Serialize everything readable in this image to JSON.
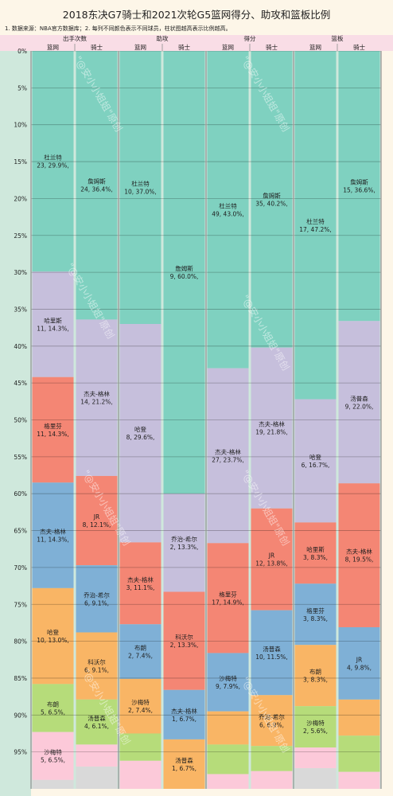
{
  "title": "2018东决G7骑士和2021次轮G5篮网得分、助攻和篮板比例",
  "note": "1. 数据来源：NBA官方数据库；2. 每列不同颜色表示不同球员，柱状图越高表示比例越高。",
  "watermark": "\"@安小小姐姐\"原创",
  "colors": {
    "background": "#fdf6e8",
    "header": "#f9dde6",
    "plot_bg": "#cfe8dc",
    "separator": "#8f8f8f",
    "players": {
      "杜兰特": "#7fd1c0",
      "詹姆斯": "#7fd1c0",
      "哈里斯": "#c6bfdc",
      "杰夫-格林": "#c6bfdc",
      "哈登": "#c6bfdc",
      "汤普森": "#c6bfdc",
      "格里芬": "#f48674",
      "JR": "#f48674",
      "科沃尔": "#f48674",
      "乔治-希尔": "#c6bfdc",
      "布朗": "#7fb0d6",
      "沙梅特": "#f9b565",
      "其他1": "#b6dc7a",
      "其他2": "#fcc9d9",
      "其他3": "#d9d9d9"
    }
  },
  "chart_data": {
    "type": "bar",
    "stacked": true,
    "ylabel_ticks": [
      "0%",
      "5%",
      "10%",
      "15%",
      "20%",
      "25%",
      "30%",
      "35%",
      "40%",
      "45%",
      "50%",
      "55%",
      "60%",
      "65%",
      "70%",
      "75%",
      "80%",
      "85%",
      "90%",
      "95%"
    ],
    "ylim": [
      0,
      100
    ],
    "y_axis_direction": "down",
    "groups": [
      {
        "name": "出手次数",
        "columns": [
          "篮网",
          "骑士"
        ]
      },
      {
        "name": "助攻",
        "columns": [
          "篮网",
          "骑士"
        ]
      },
      {
        "name": "得分",
        "columns": [
          "篮网",
          "骑士"
        ]
      },
      {
        "name": "篮板",
        "columns": [
          "篮网",
          "骑士"
        ]
      }
    ],
    "columns": [
      {
        "group": "出手次数",
        "team": "篮网",
        "segments": [
          {
            "player": "杜兰特",
            "label": "杜兰特\n23, 29.9%,",
            "value": 29.9,
            "color": "#7fd1c0"
          },
          {
            "player": "哈里斯",
            "label": "哈里斯\n11, 14.3%,",
            "value": 14.3,
            "color": "#c6bfdc"
          },
          {
            "player": "格里芬",
            "label": "格里芬\n11, 14.3%,",
            "value": 14.3,
            "color": "#f48674"
          },
          {
            "player": "杰夫-格林",
            "label": "杰夫-格林\n11, 14.3%,",
            "value": 14.3,
            "color": "#7fb0d6"
          },
          {
            "player": "哈登",
            "label": "哈登\n10, 13.0%,",
            "value": 13.0,
            "color": "#f9b565"
          },
          {
            "player": "布朗",
            "label": "布朗\n5, 6.5%,",
            "value": 6.5,
            "color": "#b6dc7a"
          },
          {
            "player": "沙梅特",
            "label": "沙梅特\n5, 6.5%,",
            "value": 6.5,
            "color": "#fcc9d9"
          },
          {
            "player": "",
            "label": "",
            "value": 1.2,
            "color": "#d9d9d9"
          }
        ]
      },
      {
        "group": "出手次数",
        "team": "骑士",
        "segments": [
          {
            "player": "詹姆斯",
            "label": "詹姆斯\n24, 36.4%,",
            "value": 36.4,
            "color": "#7fd1c0"
          },
          {
            "player": "杰夫-格林",
            "label": "杰夫-格林\n14, 21.2%,",
            "value": 21.2,
            "color": "#c6bfdc"
          },
          {
            "player": "JR",
            "label": "JR\n8, 12.1%,",
            "value": 12.1,
            "color": "#f48674"
          },
          {
            "player": "乔治-希尔",
            "label": "乔治-希尔\n6, 9.1%,",
            "value": 9.1,
            "color": "#7fb0d6"
          },
          {
            "player": "科沃尔",
            "label": "科沃尔\n6, 9.1%,",
            "value": 9.1,
            "color": "#f9b565"
          },
          {
            "player": "汤普森",
            "label": "汤普森\n4, 6.1%,",
            "value": 6.1,
            "color": "#b6dc7a"
          },
          {
            "player": "",
            "label": "",
            "value": 3.0,
            "color": "#fcc9d9"
          },
          {
            "player": "",
            "label": "",
            "value": 3.0,
            "color": "#d9d9d9"
          }
        ]
      },
      {
        "group": "助攻",
        "team": "篮网",
        "segments": [
          {
            "player": "杜兰特",
            "label": "杜兰特\n10, 37.0%,",
            "value": 37.0,
            "color": "#7fd1c0"
          },
          {
            "player": "哈登",
            "label": "哈登\n8, 29.6%,",
            "value": 29.6,
            "color": "#c6bfdc"
          },
          {
            "player": "杰夫-格林",
            "label": "杰夫-格林\n3, 11.1%,",
            "value": 11.1,
            "color": "#f48674"
          },
          {
            "player": "布朗",
            "label": "布朗\n2, 7.4%,",
            "value": 7.4,
            "color": "#7fb0d6"
          },
          {
            "player": "沙梅特",
            "label": "沙梅特\n2, 7.4%,",
            "value": 7.4,
            "color": "#f9b565"
          },
          {
            "player": "",
            "label": "",
            "value": 3.7,
            "color": "#b6dc7a"
          },
          {
            "player": "",
            "label": "",
            "value": 3.8,
            "color": "#fcc9d9"
          }
        ]
      },
      {
        "group": "助攻",
        "team": "骑士",
        "segments": [
          {
            "player": "詹姆斯",
            "label": "詹姆斯\n9, 60.0%,",
            "value": 60.0,
            "color": "#7fd1c0"
          },
          {
            "player": "乔治-希尔",
            "label": "乔治-希尔\n2, 13.3%,",
            "value": 13.3,
            "color": "#c6bfdc"
          },
          {
            "player": "科沃尔",
            "label": "科沃尔\n2, 13.3%,",
            "value": 13.3,
            "color": "#f48674"
          },
          {
            "player": "杰夫-格林",
            "label": "杰夫-格林\n1, 6.7%,",
            "value": 6.7,
            "color": "#7fb0d6"
          },
          {
            "player": "汤普森",
            "label": "汤普森\n1, 6.7%,",
            "value": 6.7,
            "color": "#f9b565"
          }
        ]
      },
      {
        "group": "得分",
        "team": "篮网",
        "segments": [
          {
            "player": "杜兰特",
            "label": "杜兰特\n49, 43.0%,",
            "value": 43.0,
            "color": "#7fd1c0"
          },
          {
            "player": "杰夫-格林",
            "label": "杰夫-格林\n27, 23.7%,",
            "value": 23.7,
            "color": "#c6bfdc"
          },
          {
            "player": "格里芬",
            "label": "格里芬\n17, 14.9%,",
            "value": 14.9,
            "color": "#f48674"
          },
          {
            "player": "沙梅特",
            "label": "沙梅特\n9, 7.9%,",
            "value": 7.9,
            "color": "#7fb0d6"
          },
          {
            "player": "",
            "label": "",
            "value": 4.5,
            "color": "#f9b565"
          },
          {
            "player": "",
            "label": "",
            "value": 4.0,
            "color": "#b6dc7a"
          },
          {
            "player": "",
            "label": "",
            "value": 2.0,
            "color": "#fcc9d9"
          }
        ]
      },
      {
        "group": "得分",
        "team": "骑士",
        "segments": [
          {
            "player": "詹姆斯",
            "label": "詹姆斯\n35, 40.2%,",
            "value": 40.2,
            "color": "#7fd1c0"
          },
          {
            "player": "杰夫-格林",
            "label": "杰夫-格林\n19, 21.8%,",
            "value": 21.8,
            "color": "#c6bfdc"
          },
          {
            "player": "JR",
            "label": "JR\n12, 13.8%,",
            "value": 13.8,
            "color": "#f48674"
          },
          {
            "player": "汤普森",
            "label": "汤普森\n10, 11.5%,",
            "value": 11.5,
            "color": "#7fb0d6"
          },
          {
            "player": "乔治-希尔",
            "label": "乔治-希尔\n6, 6.9%,",
            "value": 6.9,
            "color": "#f9b565"
          },
          {
            "player": "",
            "label": "",
            "value": 3.4,
            "color": "#b6dc7a"
          },
          {
            "player": "",
            "label": "",
            "value": 2.4,
            "color": "#fcc9d9"
          }
        ]
      },
      {
        "group": "篮板",
        "team": "篮网",
        "segments": [
          {
            "player": "杜兰特",
            "label": "杜兰特\n17, 47.2%,",
            "value": 47.2,
            "color": "#7fd1c0"
          },
          {
            "player": "哈登",
            "label": "哈登\n6, 16.7%,",
            "value": 16.7,
            "color": "#c6bfdc"
          },
          {
            "player": "哈里斯",
            "label": "哈里斯\n3, 8.3%,",
            "value": 8.3,
            "color": "#f48674"
          },
          {
            "player": "格里芬",
            "label": "格里芬\n3, 8.3%,",
            "value": 8.3,
            "color": "#7fb0d6"
          },
          {
            "player": "布朗",
            "label": "布朗\n3, 8.3%,",
            "value": 8.3,
            "color": "#f9b565"
          },
          {
            "player": "沙梅特",
            "label": "沙梅特\n2, 5.6%,",
            "value": 5.6,
            "color": "#b6dc7a"
          },
          {
            "player": "",
            "label": "",
            "value": 2.8,
            "color": "#fcc9d9"
          },
          {
            "player": "",
            "label": "",
            "value": 2.8,
            "color": "#d9d9d9"
          }
        ]
      },
      {
        "group": "篮板",
        "team": "骑士",
        "segments": [
          {
            "player": "詹姆斯",
            "label": "詹姆斯\n15, 36.6%,",
            "value": 36.6,
            "color": "#7fd1c0"
          },
          {
            "player": "汤普森",
            "label": "汤普森\n9, 22.0%,",
            "value": 22.0,
            "color": "#c6bfdc"
          },
          {
            "player": "杰夫-格林",
            "label": "杰夫-格林\n8, 19.5%,",
            "value": 19.5,
            "color": "#f48674"
          },
          {
            "player": "JR",
            "label": "JR\n4, 9.8%,",
            "value": 9.8,
            "color": "#7fb0d6"
          },
          {
            "player": "",
            "label": "",
            "value": 4.9,
            "color": "#f9b565"
          },
          {
            "player": "",
            "label": "",
            "value": 4.9,
            "color": "#b6dc7a"
          },
          {
            "player": "",
            "label": "",
            "value": 2.3,
            "color": "#fcc9d9"
          }
        ]
      }
    ]
  }
}
